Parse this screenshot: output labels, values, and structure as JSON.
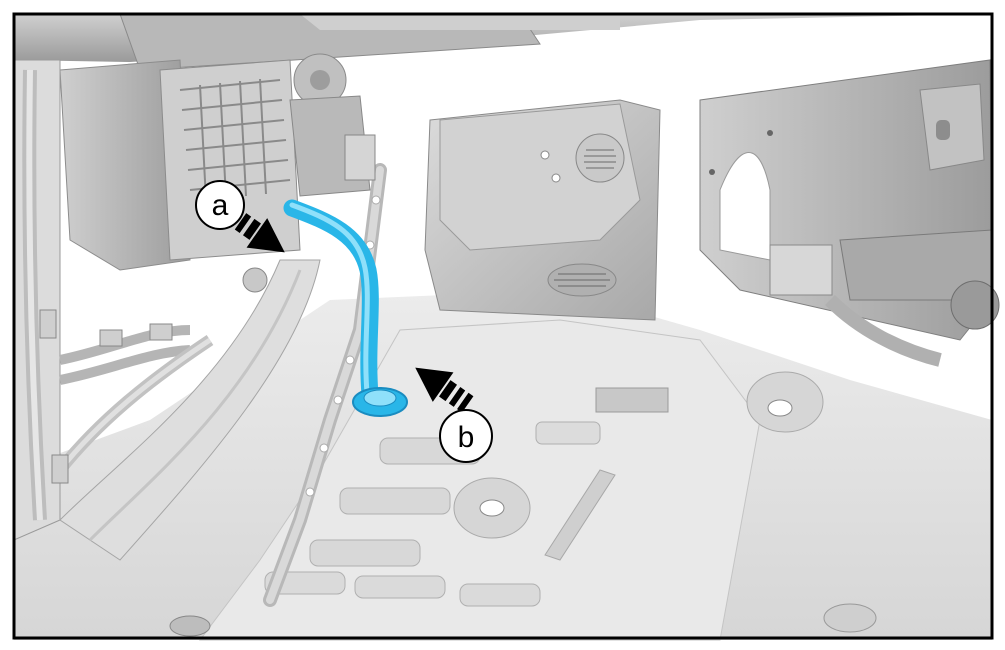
{
  "callouts": {
    "a": {
      "label": "a"
    },
    "b": {
      "label": "b"
    }
  },
  "colors": {
    "hose": "#29b6e8",
    "hose_dark": "#1a8cc0",
    "hose_light": "#8fe0fa",
    "frame": "#000000",
    "panel": "#e6e6e6",
    "panel_dark": "#bdbdbd",
    "panel_light": "#f7f7f7",
    "shadow": "#8a8a8a"
  },
  "icons": {
    "arrow_a": "arrow-down-right-icon",
    "arrow_b": "arrow-up-left-icon"
  }
}
